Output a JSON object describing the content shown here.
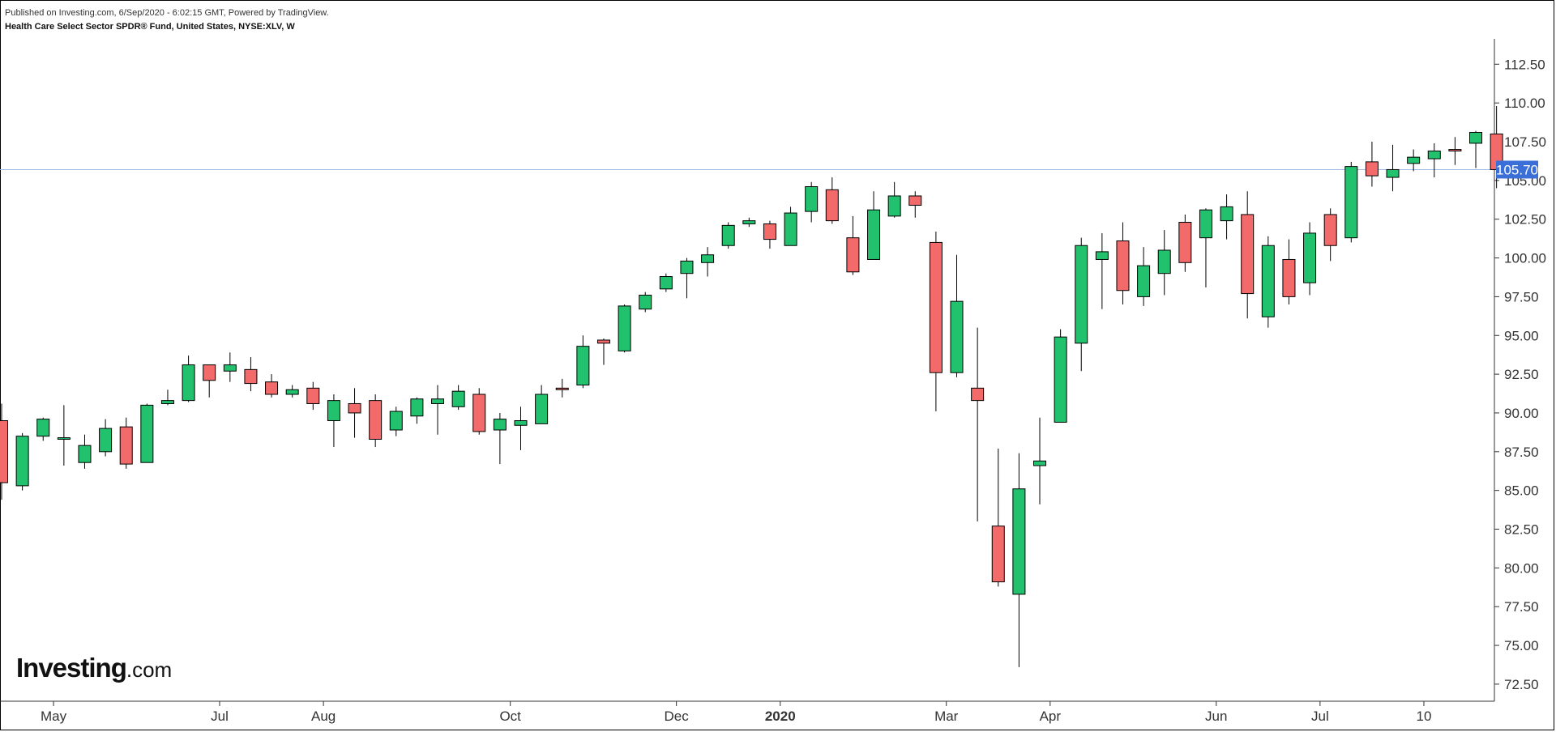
{
  "header": {
    "published": "Published on Investing.com, 6/Sep/2020 - 6:02:15 GMT, Powered by TradingView.",
    "title": "Health Care Select Sector SPDR® Fund, United States, NYSE:XLV, W"
  },
  "logo": {
    "brand": "Investing",
    "domain": ".com"
  },
  "colors": {
    "up": "#22c16e",
    "down": "#f26a6a",
    "wick": "#000000",
    "price_line": "#9fbbe6",
    "price_tag": "#3b6fd8"
  },
  "chart_data": {
    "type": "candlestick",
    "title": "Health Care Select Sector SPDR® Fund, United States, NYSE:XLV, W",
    "ylim": [
      71.5,
      114
    ],
    "y_ticks": [
      "72.50",
      "75.00",
      "77.50",
      "80.00",
      "82.50",
      "85.00",
      "87.50",
      "90.00",
      "92.50",
      "95.00",
      "97.50",
      "100.00",
      "102.50",
      "105.00",
      "107.50",
      "110.00",
      "112.50"
    ],
    "x_labels": [
      {
        "label": "May",
        "index": 2.5,
        "bold": false
      },
      {
        "label": "Jul",
        "index": 10.5,
        "bold": false
      },
      {
        "label": "Aug",
        "index": 15.5,
        "bold": false
      },
      {
        "label": "Oct",
        "index": 24.5,
        "bold": false
      },
      {
        "label": "Dec",
        "index": 32.5,
        "bold": false
      },
      {
        "label": "2020",
        "index": 37.5,
        "bold": true
      },
      {
        "label": "Mar",
        "index": 45.5,
        "bold": false
      },
      {
        "label": "Apr",
        "index": 50.5,
        "bold": false
      },
      {
        "label": "Jun",
        "index": 58.5,
        "bold": false
      },
      {
        "label": "Jul",
        "index": 63.5,
        "bold": false
      },
      {
        "label": "10",
        "index": 68.5,
        "bold": false
      }
    ],
    "current_price": 105.7,
    "current_price_label": "105.70",
    "candles": [
      {
        "o": 89.5,
        "h": 90.6,
        "l": 84.4,
        "c": 85.5
      },
      {
        "o": 85.3,
        "h": 88.7,
        "l": 85.0,
        "c": 88.5
      },
      {
        "o": 88.5,
        "h": 89.7,
        "l": 88.2,
        "c": 89.6
      },
      {
        "o": 88.3,
        "h": 90.5,
        "l": 86.6,
        "c": 88.4
      },
      {
        "o": 86.8,
        "h": 88.6,
        "l": 86.4,
        "c": 87.9
      },
      {
        "o": 87.5,
        "h": 89.6,
        "l": 87.2,
        "c": 89.0
      },
      {
        "o": 89.1,
        "h": 89.7,
        "l": 86.4,
        "c": 86.7
      },
      {
        "o": 86.8,
        "h": 90.6,
        "l": 86.8,
        "c": 90.5
      },
      {
        "o": 90.6,
        "h": 91.5,
        "l": 90.5,
        "c": 90.8
      },
      {
        "o": 90.8,
        "h": 93.7,
        "l": 90.7,
        "c": 93.1
      },
      {
        "o": 93.1,
        "h": 93.0,
        "l": 91.0,
        "c": 92.1
      },
      {
        "o": 92.7,
        "h": 93.9,
        "l": 92.0,
        "c": 93.1
      },
      {
        "o": 92.8,
        "h": 93.6,
        "l": 91.4,
        "c": 91.9
      },
      {
        "o": 92.0,
        "h": 92.5,
        "l": 91.0,
        "c": 91.2
      },
      {
        "o": 91.2,
        "h": 91.8,
        "l": 91.0,
        "c": 91.5
      },
      {
        "o": 91.6,
        "h": 92.0,
        "l": 90.2,
        "c": 90.6
      },
      {
        "o": 89.5,
        "h": 91.2,
        "l": 87.8,
        "c": 90.8
      },
      {
        "o": 90.6,
        "h": 91.6,
        "l": 88.4,
        "c": 90.0
      },
      {
        "o": 90.8,
        "h": 91.2,
        "l": 87.8,
        "c": 88.3
      },
      {
        "o": 88.9,
        "h": 90.4,
        "l": 88.5,
        "c": 90.1
      },
      {
        "o": 89.8,
        "h": 91.0,
        "l": 89.3,
        "c": 90.9
      },
      {
        "o": 90.6,
        "h": 91.8,
        "l": 88.6,
        "c": 90.9
      },
      {
        "o": 90.4,
        "h": 91.8,
        "l": 90.2,
        "c": 91.4
      },
      {
        "o": 91.2,
        "h": 91.6,
        "l": 88.6,
        "c": 88.8
      },
      {
        "o": 88.9,
        "h": 90.0,
        "l": 86.7,
        "c": 89.6
      },
      {
        "o": 89.2,
        "h": 90.4,
        "l": 87.6,
        "c": 89.5
      },
      {
        "o": 89.3,
        "h": 91.8,
        "l": 89.3,
        "c": 91.2
      },
      {
        "o": 91.6,
        "h": 92.2,
        "l": 91.0,
        "c": 91.5
      },
      {
        "o": 91.8,
        "h": 95.0,
        "l": 91.6,
        "c": 94.3
      },
      {
        "o": 94.7,
        "h": 94.8,
        "l": 93.1,
        "c": 94.5
      },
      {
        "o": 94.0,
        "h": 97.0,
        "l": 93.9,
        "c": 96.9
      },
      {
        "o": 96.7,
        "h": 97.8,
        "l": 96.5,
        "c": 97.6
      },
      {
        "o": 98.0,
        "h": 99.0,
        "l": 97.8,
        "c": 98.8
      },
      {
        "o": 99.0,
        "h": 100.0,
        "l": 97.4,
        "c": 99.8
      },
      {
        "o": 99.7,
        "h": 100.7,
        "l": 98.8,
        "c": 100.2
      },
      {
        "o": 100.8,
        "h": 102.3,
        "l": 100.6,
        "c": 102.1
      },
      {
        "o": 102.2,
        "h": 102.6,
        "l": 102.0,
        "c": 102.4
      },
      {
        "o": 102.2,
        "h": 102.4,
        "l": 100.6,
        "c": 101.2
      },
      {
        "o": 100.8,
        "h": 103.3,
        "l": 100.8,
        "c": 102.9
      },
      {
        "o": 103.0,
        "h": 104.9,
        "l": 102.3,
        "c": 104.6
      },
      {
        "o": 104.4,
        "h": 105.2,
        "l": 102.2,
        "c": 102.4
      },
      {
        "o": 101.3,
        "h": 102.7,
        "l": 98.9,
        "c": 99.1
      },
      {
        "o": 99.9,
        "h": 104.3,
        "l": 99.9,
        "c": 103.1
      },
      {
        "o": 102.7,
        "h": 104.9,
        "l": 102.6,
        "c": 104.0
      },
      {
        "o": 104.0,
        "h": 104.3,
        "l": 102.6,
        "c": 103.4
      },
      {
        "o": 101.0,
        "h": 101.7,
        "l": 90.1,
        "c": 92.6
      },
      {
        "o": 92.6,
        "h": 100.2,
        "l": 92.3,
        "c": 97.2
      },
      {
        "o": 91.6,
        "h": 95.5,
        "l": 83.0,
        "c": 90.8
      },
      {
        "o": 82.7,
        "h": 87.7,
        "l": 78.8,
        "c": 79.1
      },
      {
        "o": 78.3,
        "h": 87.4,
        "l": 73.6,
        "c": 85.1
      },
      {
        "o": 86.6,
        "h": 89.7,
        "l": 84.1,
        "c": 86.9
      },
      {
        "o": 89.4,
        "h": 95.4,
        "l": 89.4,
        "c": 94.9
      },
      {
        "o": 94.5,
        "h": 101.3,
        "l": 92.7,
        "c": 100.8
      },
      {
        "o": 99.9,
        "h": 101.6,
        "l": 96.7,
        "c": 100.4
      },
      {
        "o": 101.1,
        "h": 102.3,
        "l": 97.0,
        "c": 97.9
      },
      {
        "o": 97.5,
        "h": 100.7,
        "l": 96.9,
        "c": 99.5
      },
      {
        "o": 99.0,
        "h": 101.8,
        "l": 97.6,
        "c": 100.5
      },
      {
        "o": 102.3,
        "h": 102.8,
        "l": 99.1,
        "c": 99.7
      },
      {
        "o": 101.3,
        "h": 103.2,
        "l": 98.1,
        "c": 103.1
      },
      {
        "o": 102.4,
        "h": 104.1,
        "l": 101.2,
        "c": 103.3
      },
      {
        "o": 102.8,
        "h": 104.3,
        "l": 96.1,
        "c": 97.7
      },
      {
        "o": 96.2,
        "h": 101.4,
        "l": 95.5,
        "c": 100.8
      },
      {
        "o": 99.9,
        "h": 101.2,
        "l": 97.0,
        "c": 97.5
      },
      {
        "o": 98.4,
        "h": 102.3,
        "l": 97.6,
        "c": 101.6
      },
      {
        "o": 102.8,
        "h": 103.2,
        "l": 99.8,
        "c": 100.8
      },
      {
        "o": 101.3,
        "h": 106.2,
        "l": 101.0,
        "c": 105.9
      },
      {
        "o": 106.2,
        "h": 107.5,
        "l": 104.6,
        "c": 105.3
      },
      {
        "o": 105.2,
        "h": 107.3,
        "l": 104.3,
        "c": 105.7
      },
      {
        "o": 106.1,
        "h": 107.0,
        "l": 105.6,
        "c": 106.5
      },
      {
        "o": 106.4,
        "h": 107.4,
        "l": 105.2,
        "c": 106.9
      },
      {
        "o": 107.0,
        "h": 107.8,
        "l": 106.0,
        "c": 106.9
      },
      {
        "o": 107.4,
        "h": 108.2,
        "l": 105.8,
        "c": 108.1
      },
      {
        "o": 108.0,
        "h": 109.8,
        "l": 104.5,
        "c": 105.7
      }
    ]
  }
}
